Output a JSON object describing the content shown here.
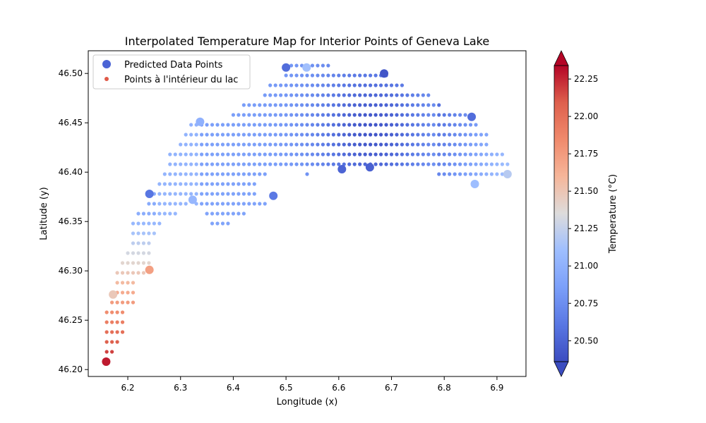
{
  "chart_data": {
    "type": "scatter",
    "title": "Interpolated Temperature Map for Interior Points of Geneva Lake",
    "xlabel": "Longitude (x)",
    "ylabel": "Latitude (y)",
    "xlim": [
      6.125,
      6.955
    ],
    "ylim": [
      46.193,
      46.523
    ],
    "xticks": [
      6.2,
      6.3,
      6.4,
      6.5,
      6.6,
      6.7,
      6.8,
      6.9
    ],
    "xtick_labels": [
      "6.2",
      "6.3",
      "6.4",
      "6.5",
      "6.6",
      "6.7",
      "6.8",
      "6.9"
    ],
    "yticks": [
      46.2,
      46.25,
      46.3,
      46.35,
      46.4,
      46.45,
      46.5
    ],
    "ytick_labels": [
      "46.20",
      "46.25",
      "46.30",
      "46.35",
      "46.40",
      "46.45",
      "46.50"
    ],
    "grid": false,
    "legend": {
      "position": "upper-left",
      "entries": [
        "Predicted Data Points",
        "Points à l'intérieur du lac"
      ]
    },
    "colorbar": {
      "label": "Temperature (°C)",
      "colormap": "coolwarm",
      "min": 20.36,
      "max": 22.34,
      "extend": "both",
      "ticks": [
        20.5,
        20.75,
        21.0,
        21.25,
        21.5,
        21.75,
        22.0,
        22.25
      ],
      "tick_labels": [
        "20.50",
        "20.75",
        "21.00",
        "21.25",
        "21.50",
        "21.75",
        "22.00",
        "22.25"
      ]
    },
    "series": [
      {
        "name": "Predicted Data Points",
        "marker": "large-circle",
        "points": [
          {
            "x": 6.159,
            "y": 46.208,
            "t": 22.28
          },
          {
            "x": 6.172,
            "y": 46.276,
            "t": 21.48
          },
          {
            "x": 6.241,
            "y": 46.301,
            "t": 21.72
          },
          {
            "x": 6.241,
            "y": 46.378,
            "t": 20.6
          },
          {
            "x": 6.323,
            "y": 46.372,
            "t": 21.05
          },
          {
            "x": 6.337,
            "y": 46.451,
            "t": 21.0
          },
          {
            "x": 6.476,
            "y": 46.376,
            "t": 20.62
          },
          {
            "x": 6.5,
            "y": 46.506,
            "t": 20.55
          },
          {
            "x": 6.539,
            "y": 46.506,
            "t": 21.12
          },
          {
            "x": 6.606,
            "y": 46.403,
            "t": 20.5
          },
          {
            "x": 6.659,
            "y": 46.405,
            "t": 20.48
          },
          {
            "x": 6.686,
            "y": 46.5,
            "t": 20.42
          },
          {
            "x": 6.852,
            "y": 46.456,
            "t": 20.55
          },
          {
            "x": 6.858,
            "y": 46.388,
            "t": 21.1
          },
          {
            "x": 6.92,
            "y": 46.398,
            "t": 21.2
          }
        ]
      },
      {
        "name": "Points à l'intérieur du lac",
        "marker": "small-circle",
        "grid_spacing": [
          0.01,
          0.01
        ],
        "points_generated_from": "interior lake grid (same data, rendered as small markers)"
      }
    ]
  }
}
